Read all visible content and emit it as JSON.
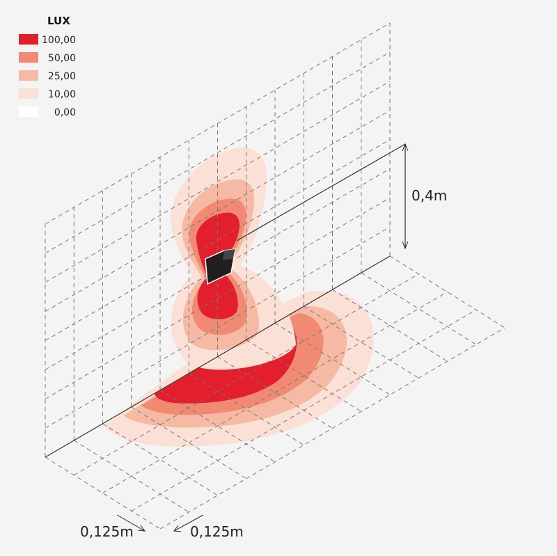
{
  "legend": {
    "title": "LUX",
    "items": [
      {
        "label": "100,00",
        "color": "#e31e2d"
      },
      {
        "label": "50,00",
        "color": "#f08a72"
      },
      {
        "label": "25,00",
        "color": "#f6b9a4"
      },
      {
        "label": "10,00",
        "color": "#fbe0d6"
      },
      {
        "label": "0,00",
        "color": "#ffffff"
      }
    ]
  },
  "dimensions": {
    "height": "0,4m",
    "grid_x": "0,125m",
    "grid_y": "0,125m"
  }
}
